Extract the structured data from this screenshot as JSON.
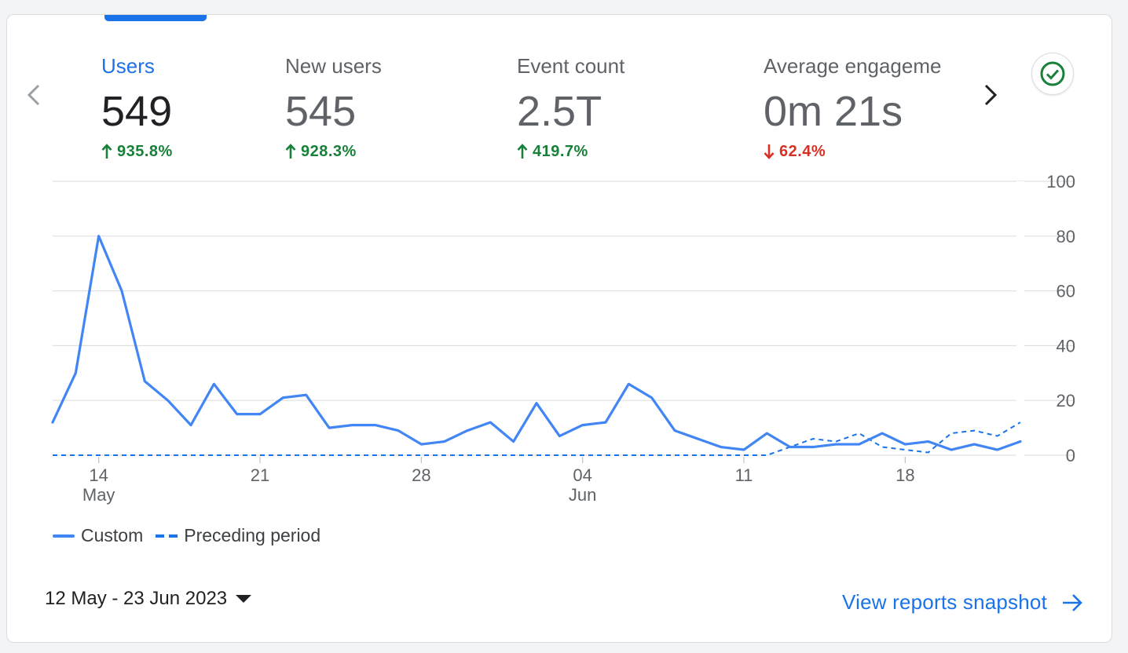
{
  "metrics": [
    {
      "label": "Users",
      "value": "549",
      "change": "935.8%",
      "direction": "up"
    },
    {
      "label": "New users",
      "value": "545",
      "change": "928.3%",
      "direction": "up"
    },
    {
      "label": "Event count",
      "value": "2.5T",
      "change": "419.7%",
      "direction": "up"
    },
    {
      "label": "Average engageme",
      "value": "0m 21s",
      "change": "62.4%",
      "direction": "down"
    }
  ],
  "icons": {
    "prev": "chevron-left-icon",
    "next": "chevron-right-icon",
    "status": "check-circle-icon",
    "up": "arrow-up-icon",
    "down": "arrow-down-icon",
    "dropdown": "caret-down-icon",
    "link": "arrow-right-icon"
  },
  "colors": {
    "accent": "#1a73e8",
    "series_custom": "#4285f4",
    "series_preceding": "#1a73e8",
    "positive": "#188038",
    "negative": "#d93025",
    "status_check": "#188038"
  },
  "chart_data": {
    "type": "line",
    "title": "",
    "xlabel": "",
    "ylabel": "",
    "ylim": [
      0,
      100
    ],
    "y_ticks": [
      "100",
      "80",
      "60",
      "40",
      "20",
      "0"
    ],
    "y_tick_values": [
      100,
      80,
      60,
      40,
      20,
      0
    ],
    "x_ticks": [
      {
        "index": 2,
        "label": "14",
        "sublabel": "May"
      },
      {
        "index": 9,
        "label": "21",
        "sublabel": ""
      },
      {
        "index": 16,
        "label": "28",
        "sublabel": ""
      },
      {
        "index": 23,
        "label": "04",
        "sublabel": "Jun"
      },
      {
        "index": 30,
        "label": "11",
        "sublabel": ""
      },
      {
        "index": 37,
        "label": "18",
        "sublabel": ""
      }
    ],
    "grid": true,
    "legend_position": "bottom-left",
    "series": [
      {
        "name": "Custom",
        "style": "solid",
        "values": [
          12,
          30,
          80,
          60,
          27,
          20,
          11,
          26,
          15,
          15,
          21,
          22,
          10,
          11,
          11,
          9,
          4,
          5,
          9,
          12,
          5,
          19,
          7,
          11,
          12,
          26,
          21,
          9,
          6,
          3,
          2,
          8,
          3,
          3,
          4,
          4,
          8,
          4,
          5,
          2,
          4,
          2,
          5
        ]
      },
      {
        "name": "Preceding period",
        "style": "dashed",
        "values": [
          0,
          0,
          0,
          0,
          0,
          0,
          0,
          0,
          0,
          0,
          0,
          0,
          0,
          0,
          0,
          0,
          0,
          0,
          0,
          0,
          0,
          0,
          0,
          0,
          0,
          0,
          0,
          0,
          0,
          0,
          0,
          0,
          3,
          6,
          5,
          8,
          3,
          2,
          1,
          8,
          9,
          7,
          12
        ]
      }
    ]
  },
  "legend": {
    "custom": "Custom",
    "preceding": "Preceding period"
  },
  "footer": {
    "date_range": "12 May - 23 Jun 2023",
    "snapshot_link": "View reports snapshot"
  }
}
